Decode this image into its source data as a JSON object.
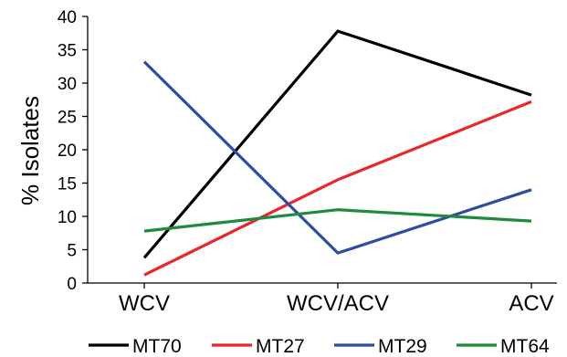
{
  "chart_data": {
    "type": "line",
    "title": "",
    "xlabel": "",
    "ylabel": "% Isolates",
    "categories": [
      "WCV",
      "WCV/ACV",
      "ACV"
    ],
    "ylim": [
      0,
      40
    ],
    "yticks": [
      0,
      5,
      10,
      15,
      20,
      25,
      30,
      35,
      40
    ],
    "grid": false,
    "legend": "bottom",
    "series": [
      {
        "name": "MT70",
        "color": "#000000",
        "values": [
          3.8,
          37.8,
          28.2
        ]
      },
      {
        "name": "MT27",
        "color": "#e8262b",
        "values": [
          1.2,
          15.5,
          27.2
        ]
      },
      {
        "name": "MT29",
        "color": "#2e4da0",
        "values": [
          33.2,
          4.5,
          14.0
        ]
      },
      {
        "name": "MT64",
        "color": "#1e8a3e",
        "values": [
          7.8,
          11.0,
          9.3
        ]
      }
    ]
  }
}
